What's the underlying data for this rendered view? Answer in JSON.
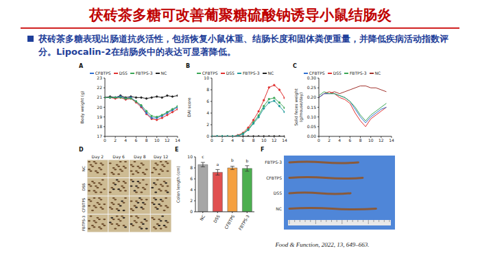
{
  "title": "茯砖茶多糖可改善葡聚糖硫酸钠诱导小鼠结肠炎",
  "bullet": "茯砖茶多糖表现出肠道抗炎活性，包括恢复小鼠体重、结肠长度和固体粪便重量，并降低疾病活动指数评分。Lipocalin-2在结肠炎中的表达可显著降低。",
  "citation": "Food & Function, 2022, 13, 649–663.",
  "chart_data": [
    {
      "panel": "A",
      "type": "line",
      "y_label": "Body weight (g)",
      "x": [
        0,
        1,
        2,
        3,
        4,
        5,
        6,
        7,
        8,
        9,
        10,
        11,
        12,
        13,
        14
      ],
      "xlim": [
        0,
        14
      ],
      "xticks": [
        0,
        2,
        4,
        6,
        8,
        10,
        12,
        14
      ],
      "ylim": [
        17,
        23
      ],
      "yticks": [
        17,
        18,
        19,
        20,
        21,
        22,
        23
      ],
      "grid": false,
      "legend": "top",
      "marker": "circle",
      "series": [
        {
          "name": "NC",
          "color": "#222222",
          "values": [
            21,
            21.1,
            21,
            21.2,
            21,
            21.1,
            21,
            21,
            20.9,
            21,
            21.1,
            21,
            21.2,
            21.1,
            21.2
          ]
        },
        {
          "name": "DSS",
          "color": "#e03030",
          "values": [
            21,
            21,
            20.9,
            21,
            20.8,
            20.9,
            20.5,
            20,
            19.3,
            18.8,
            18.7,
            18.9,
            19.2,
            19.5,
            19.8
          ]
        },
        {
          "name": "CFBTPS",
          "color": "#2f6fd0",
          "values": [
            21,
            21,
            21,
            21.1,
            20.9,
            21,
            20.6,
            20.1,
            19.4,
            18.9,
            18.9,
            19.1,
            19.4,
            19.7,
            20
          ]
        },
        {
          "name": "FBTPS-3",
          "color": "#3aa655",
          "values": [
            21,
            21,
            21,
            21,
            20.9,
            20.9,
            20.6,
            20.2,
            19.6,
            19.1,
            19,
            19.2,
            19.5,
            19.8,
            20.1
          ]
        }
      ]
    },
    {
      "panel": "B",
      "type": "line",
      "y_label": "DAI score",
      "x": [
        0,
        1,
        2,
        3,
        4,
        5,
        6,
        7,
        8,
        9,
        10,
        11,
        12,
        13,
        14
      ],
      "xlim": [
        0,
        14
      ],
      "xticks": [
        0,
        2,
        4,
        6,
        8,
        10,
        12,
        14
      ],
      "ylim": [
        0,
        10
      ],
      "yticks": [
        0,
        2,
        4,
        6,
        8,
        10
      ],
      "grid": false,
      "legend": "top",
      "marker": "circle",
      "series": [
        {
          "name": "NC",
          "color": "#222222",
          "values": [
            0,
            0,
            0,
            0,
            0,
            0,
            0,
            0,
            0,
            0,
            0,
            0,
            0,
            0,
            0
          ]
        },
        {
          "name": "DSS",
          "color": "#e03030",
          "values": [
            0,
            0,
            0,
            0,
            0,
            0.2,
            0.6,
            1.5,
            2.8,
            4.3,
            6.2,
            8.4,
            8.8,
            8,
            6.6
          ]
        },
        {
          "name": "CFBTPS",
          "color": "#3aa655",
          "values": [
            0,
            0,
            0,
            0,
            0,
            0.1,
            0.5,
            1.2,
            2.4,
            3.6,
            5.2,
            6.4,
            6.6,
            5.8,
            4.9
          ]
        },
        {
          "name": "FBTPS-3",
          "color": "#1f9a9a",
          "values": [
            0,
            0,
            0,
            0,
            0,
            0.1,
            0.4,
            1.1,
            2.2,
            3.3,
            4.8,
            5.8,
            6.1,
            5.2,
            4.2
          ]
        }
      ]
    },
    {
      "panel": "C",
      "type": "line",
      "y_label": "Solid feces weight (g/mouse/day)",
      "x": [
        0,
        1,
        2,
        3,
        4,
        5,
        6,
        7,
        8,
        9,
        10,
        11,
        12,
        13
      ],
      "xlim": [
        0,
        14
      ],
      "xticks": [
        0,
        2,
        4,
        6,
        8,
        10,
        12,
        14
      ],
      "ylim": [
        0,
        0.3
      ],
      "yticks": [
        {
          "value": 0,
          "label": "0.00"
        },
        {
          "value": 0.05,
          "label": "0.05"
        },
        {
          "value": 0.1,
          "label": "0.10"
        },
        {
          "value": 0.15,
          "label": "0.15"
        },
        {
          "value": 0.2,
          "label": "0.20"
        },
        {
          "value": 0.25,
          "label": "0.25"
        },
        {
          "value": 0.3,
          "label": "0.30"
        }
      ],
      "grid": false,
      "legend": "top",
      "marker": "none",
      "series": [
        {
          "name": "NC",
          "color": "#a0302a",
          "values": [
            0.2,
            0.22,
            0.22,
            0.23,
            0.22,
            0.23,
            0.24,
            0.25,
            0.26,
            0.26,
            0.25,
            0.25,
            0.24,
            0.23
          ]
        },
        {
          "name": "DSS",
          "color": "#e03030",
          "values": [
            0.2,
            0.22,
            0.23,
            0.22,
            0.2,
            0.19,
            0.17,
            0.12,
            0.08,
            0.05,
            0.09,
            0.11,
            0.13,
            0.15
          ]
        },
        {
          "name": "CFBTPS",
          "color": "#2f6fd0",
          "values": [
            0.2,
            0.22,
            0.22,
            0.22,
            0.21,
            0.2,
            0.18,
            0.14,
            0.1,
            0.07,
            0.1,
            0.12,
            0.14,
            0.15
          ]
        },
        {
          "name": "FBTPS-3",
          "color": "#3aa655",
          "values": [
            0.21,
            0.23,
            0.22,
            0.22,
            0.21,
            0.2,
            0.18,
            0.15,
            0.11,
            0.08,
            0.11,
            0.13,
            0.15,
            0.17
          ]
        }
      ]
    },
    {
      "panel": "E",
      "type": "bar",
      "y_label": "Colon length (cm)",
      "categories": [
        "NC",
        "DSS",
        "CFBTPS",
        "FBTPS-3"
      ],
      "values": [
        8.6,
        7.2,
        8.0,
        7.9
      ],
      "errors": [
        0.4,
        0.5,
        0.3,
        0.5
      ],
      "letters": [
        "c",
        "a",
        "b",
        "b"
      ],
      "colors": [
        "#a6a6a6",
        "#e05050",
        "#f5a040",
        "#4caf50"
      ],
      "ylim": [
        0,
        10
      ],
      "yticks": [
        0,
        2,
        4,
        6,
        8,
        10
      ],
      "grid": false
    }
  ],
  "panels": {
    "D": {
      "panel": "D",
      "columns": [
        "Day 2",
        "Day 6",
        "Day 8",
        "Day 12"
      ],
      "rows": [
        "NC",
        "DSS",
        "CFBTPS",
        "FBTPS-3"
      ]
    },
    "F": {
      "panel": "F",
      "rows": [
        "FBTPS-3",
        "CFBTPS",
        "DSS",
        "NC"
      ]
    }
  }
}
